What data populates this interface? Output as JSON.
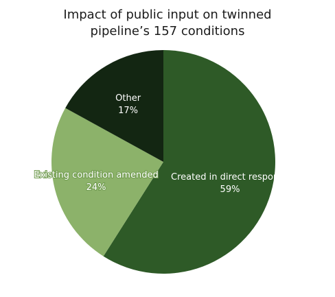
{
  "chart_data": {
    "type": "pie",
    "title_lines": [
      "Impact of public input on twinned",
      "pipeline’s 157 conditions"
    ],
    "slices": [
      {
        "label": "Created in direct response",
        "value": 59,
        "value_label": "59%",
        "color": "#2e5a27"
      },
      {
        "label": "Existing condition amended",
        "value": 24,
        "value_label": "24%",
        "color": "#8cb26a"
      },
      {
        "label": "Other",
        "value": 17,
        "value_label": "17%",
        "color": "#132612"
      }
    ]
  }
}
